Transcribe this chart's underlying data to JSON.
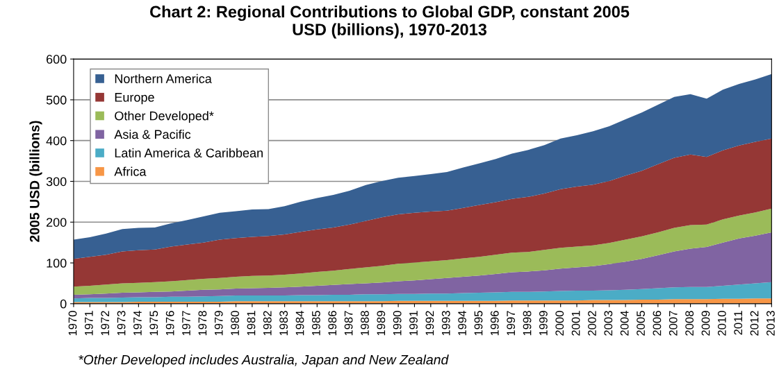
{
  "chart_data": {
    "type": "area",
    "stacked": true,
    "title": "Chart 2: Regional Contributions to Global GDP, constant 2005\nUSD (billions), 1970-2013",
    "ylabel": "2005 USD (billions)",
    "annotations": [
      "*Other Developed includes Australia, Japan and New Zealand"
    ],
    "categories": [
      "1970",
      "1971",
      "1972",
      "1973",
      "1974",
      "1975",
      "1976",
      "1977",
      "1978",
      "1979",
      "1980",
      "1981",
      "1982",
      "1983",
      "1984",
      "1985",
      "1986",
      "1987",
      "1988",
      "1989",
      "1990",
      "1991",
      "1992",
      "1993",
      "1994",
      "1995",
      "1996",
      "1997",
      "1998",
      "1999",
      "2000",
      "2001",
      "2002",
      "2003",
      "2004",
      "2005",
      "2006",
      "2007",
      "2008",
      "2009",
      "2010",
      "2011",
      "2012",
      "2013"
    ],
    "series": [
      {
        "name": "Africa",
        "color": "#f79646",
        "values": [
          4,
          4,
          4,
          4,
          5,
          5,
          5,
          5,
          5,
          5,
          6,
          6,
          6,
          6,
          6,
          6,
          6,
          6,
          6,
          6,
          7,
          7,
          7,
          7,
          7,
          7,
          7,
          8,
          8,
          8,
          8,
          8,
          9,
          9,
          9,
          10,
          10,
          11,
          11,
          11,
          12,
          12,
          13,
          13
        ]
      },
      {
        "name": "Latin America & Caribbean",
        "color": "#4bacc6",
        "values": [
          9,
          10,
          10,
          11,
          11,
          11,
          12,
          12,
          13,
          14,
          14,
          14,
          14,
          14,
          15,
          15,
          16,
          16,
          17,
          17,
          17,
          17,
          18,
          18,
          19,
          20,
          21,
          21,
          21,
          22,
          23,
          24,
          23,
          24,
          25,
          26,
          28,
          29,
          30,
          30,
          32,
          35,
          37,
          40
        ]
      },
      {
        "name": "Asia & Pacific",
        "color": "#8064a2",
        "values": [
          9,
          9,
          11,
          12,
          12,
          13,
          13,
          15,
          16,
          16,
          17,
          18,
          19,
          20,
          21,
          23,
          24,
          26,
          27,
          29,
          31,
          33,
          35,
          38,
          40,
          42,
          45,
          48,
          50,
          52,
          55,
          57,
          60,
          64,
          69,
          74,
          81,
          88,
          94,
          98,
          106,
          113,
          117,
          122
        ]
      },
      {
        "name": "Other Developed*",
        "color": "#9bbb59",
        "values": [
          20,
          21,
          22,
          23,
          23,
          24,
          25,
          26,
          27,
          28,
          29,
          30,
          30,
          31,
          32,
          34,
          35,
          37,
          39,
          41,
          43,
          44,
          44,
          44,
          45,
          46,
          47,
          48,
          48,
          50,
          51,
          51,
          51,
          52,
          54,
          55,
          56,
          58,
          58,
          55,
          57,
          56,
          57,
          58
        ]
      },
      {
        "name": "Europe",
        "color": "#953735",
        "values": [
          68,
          71,
          73,
          78,
          80,
          80,
          85,
          87,
          89,
          94,
          95,
          96,
          97,
          99,
          102,
          104,
          106,
          109,
          114,
          119,
          121,
          122,
          122,
          121,
          124,
          127,
          129,
          132,
          135,
          138,
          144,
          147,
          149,
          152,
          157,
          161,
          167,
          172,
          173,
          166,
          169,
          172,
          173,
          172
        ]
      },
      {
        "name": "Northern America",
        "color": "#376092",
        "values": [
          47,
          48,
          52,
          55,
          55,
          54,
          57,
          60,
          64,
          66,
          66,
          67,
          66,
          69,
          74,
          77,
          80,
          83,
          88,
          89,
          90,
          90,
          92,
          95,
          99,
          102,
          106,
          111,
          115,
          119,
          124,
          126,
          131,
          134,
          138,
          143,
          146,
          149,
          148,
          143,
          149,
          151,
          153,
          158
        ]
      }
    ],
    "ylim": [
      0,
      600
    ],
    "yticks": [
      0,
      100,
      200,
      300,
      400,
      500,
      600
    ],
    "grid": "y",
    "legend": "top left"
  }
}
